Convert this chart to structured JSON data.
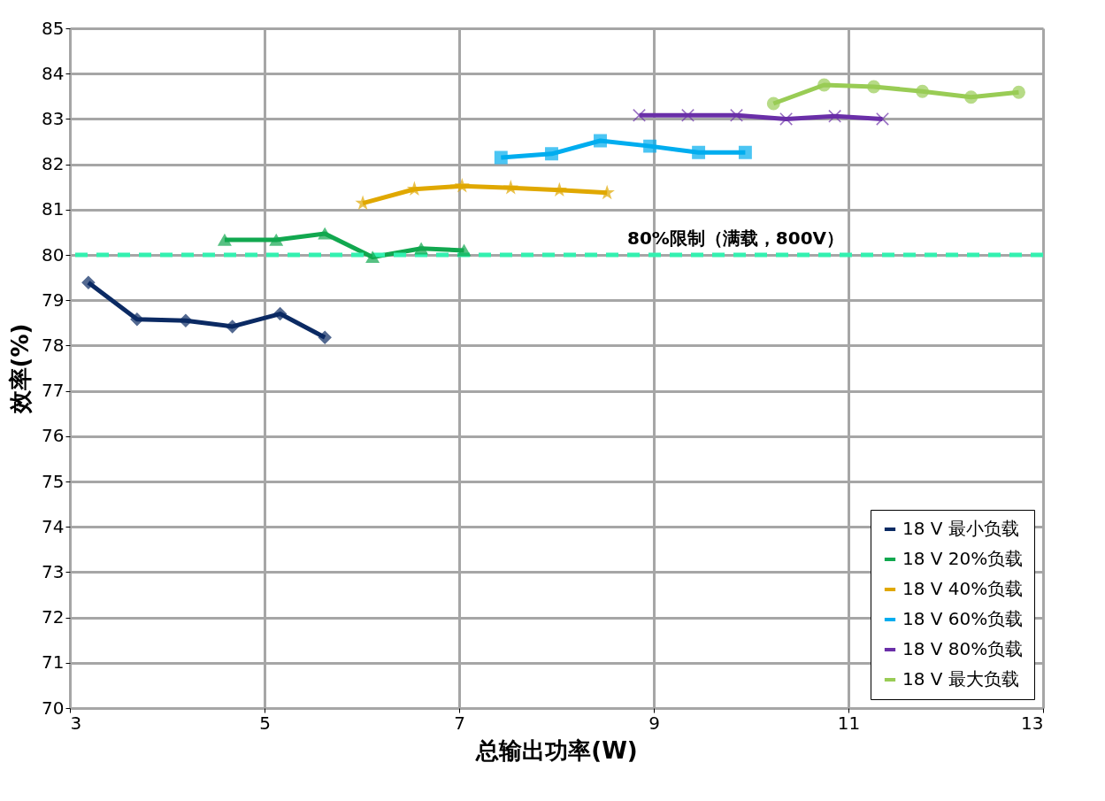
{
  "chart_data": {
    "type": "line",
    "xlabel": "总输出功率(W)",
    "ylabel": "效率(%)",
    "xlim": [
      3,
      13
    ],
    "xticks": [
      3,
      5,
      7,
      9,
      11,
      13
    ],
    "ylim": [
      70,
      85
    ],
    "yticks": [
      70,
      71,
      72,
      73,
      74,
      75,
      76,
      77,
      78,
      79,
      80,
      81,
      82,
      83,
      84,
      85
    ],
    "grid": true,
    "legend": "bottom right",
    "line_style": "solid",
    "series": [
      {
        "name": "18 V 最小负载",
        "color": "#0b2a63",
        "marker": "diamond",
        "x": [
          3.19,
          3.69,
          4.19,
          4.67,
          5.16,
          5.62
        ],
        "values": [
          79.39,
          78.58,
          78.55,
          78.42,
          78.7,
          78.18
        ]
      },
      {
        "name": "18 V 20%负载",
        "color": "#11a84f",
        "marker": "triangle",
        "x": [
          4.59,
          5.12,
          5.62,
          6.11,
          6.61,
          7.05
        ],
        "values": [
          80.33,
          80.33,
          80.47,
          79.95,
          80.14,
          80.1
        ]
      },
      {
        "name": "18 V 40%负载",
        "color": "#e0a800",
        "marker": "star",
        "x": [
          6.01,
          6.54,
          7.03,
          7.53,
          8.03,
          8.52
        ],
        "values": [
          81.14,
          81.45,
          81.52,
          81.48,
          81.43,
          81.37
        ]
      },
      {
        "name": "18 V 60%负载",
        "color": "#00adef",
        "marker": "square",
        "x": [
          7.43,
          7.95,
          8.45,
          8.96,
          9.46,
          9.94
        ],
        "values": [
          82.15,
          82.23,
          82.52,
          82.4,
          82.26,
          82.26
        ]
      },
      {
        "name": "18 V 80%负载",
        "color": "#6a2fa8",
        "marker": "cross",
        "x": [
          8.85,
          9.35,
          9.85,
          10.36,
          10.86,
          11.35
        ],
        "values": [
          83.08,
          83.08,
          83.08,
          83.0,
          83.06,
          83.0
        ]
      },
      {
        "name": "18 V 最大负载",
        "color": "#99cc55",
        "marker": "circle",
        "x": [
          10.23,
          10.75,
          11.26,
          11.76,
          12.26,
          12.75
        ],
        "values": [
          83.34,
          83.75,
          83.71,
          83.61,
          83.48,
          83.59
        ]
      }
    ],
    "ref_lines": [
      {
        "axis": "y",
        "value": 80,
        "label": "80%限制（满载，800V）",
        "color": "#33f0b0",
        "line_style": "dashed"
      }
    ]
  }
}
